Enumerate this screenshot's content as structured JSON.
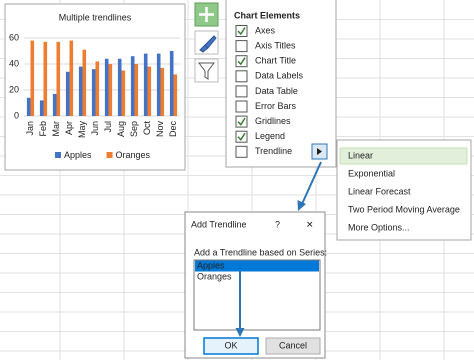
{
  "chart_data": {
    "type": "bar",
    "title": "Multiple trendlines",
    "categories": [
      "Jan",
      "Feb",
      "Mar",
      "Apr",
      "May",
      "Jun",
      "Jul",
      "Aug",
      "Sep",
      "Oct",
      "Nov",
      "Dec"
    ],
    "series": [
      {
        "name": "Apples",
        "color": "#4472c4",
        "values": [
          14,
          12,
          17,
          34,
          38,
          36,
          44,
          44,
          46,
          48,
          48,
          50
        ]
      },
      {
        "name": "Oranges",
        "color": "#ed7d31",
        "values": [
          58,
          57,
          57,
          58,
          51,
          42,
          40,
          35,
          40,
          38,
          37,
          32
        ]
      }
    ],
    "ylim": [
      0,
      60
    ],
    "yticks": [
      0,
      20,
      40,
      60
    ],
    "grid": true,
    "legend": "bottom"
  },
  "chart_elements": {
    "title": "Chart Elements",
    "items": [
      {
        "label": "Axes",
        "checked": true
      },
      {
        "label": "Axis Titles",
        "checked": false
      },
      {
        "label": "Chart Title",
        "checked": true
      },
      {
        "label": "Data Labels",
        "checked": false
      },
      {
        "label": "Data Table",
        "checked": false
      },
      {
        "label": "Error Bars",
        "checked": false
      },
      {
        "label": "Gridlines",
        "checked": true
      },
      {
        "label": "Legend",
        "checked": true
      },
      {
        "label": "Trendline",
        "checked": false
      }
    ]
  },
  "trendline_menu": {
    "items": [
      "Linear",
      "Exponential",
      "Linear Forecast",
      "Two Period Moving Average",
      "More Options..."
    ],
    "selected": 0
  },
  "dialog": {
    "title": "Add Trendline",
    "help": "?",
    "close": "✕",
    "prompt": "Add a Trendline based on Series:",
    "series": [
      "Apples",
      "Oranges"
    ],
    "selected": 0,
    "ok": "OK",
    "cancel": "Cancel"
  }
}
